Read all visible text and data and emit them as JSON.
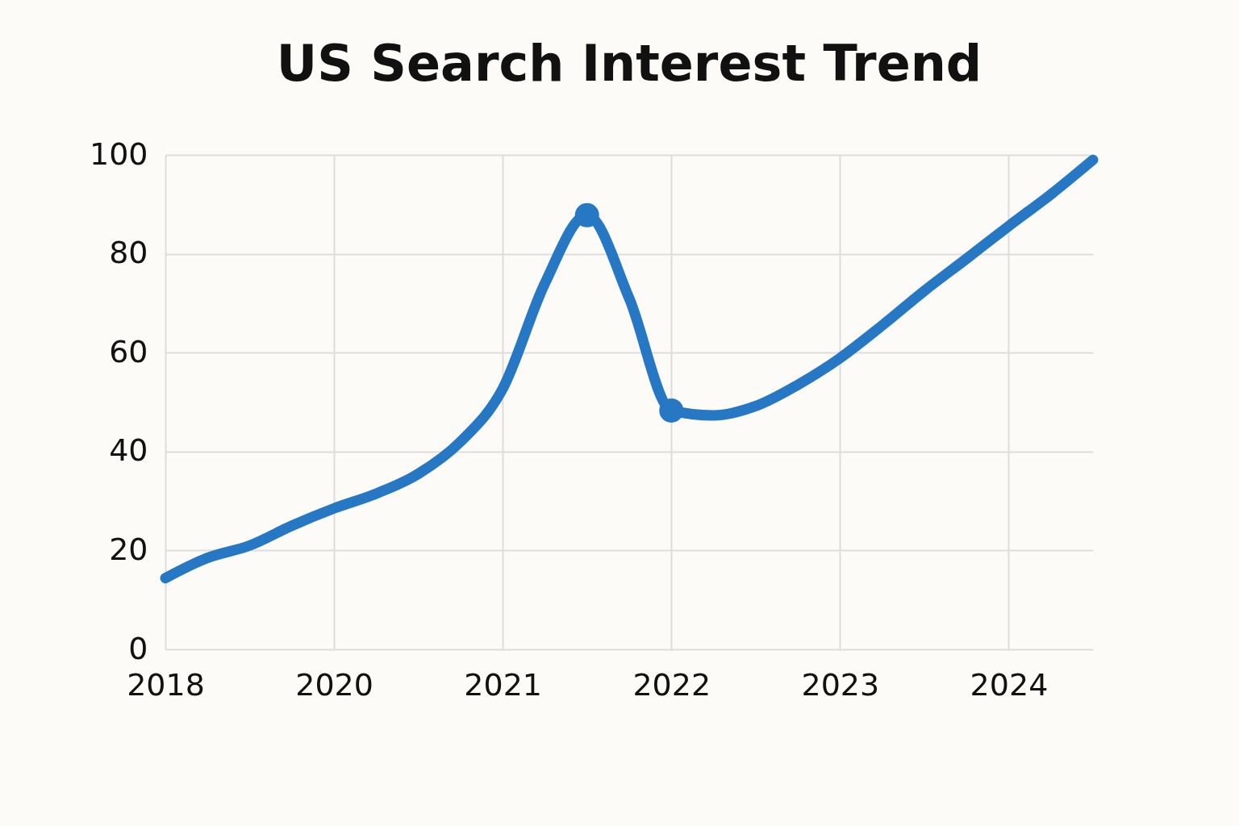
{
  "chart_data": {
    "type": "line",
    "title": "US Search Interest Trend",
    "categories": [
      "2018",
      null,
      null,
      null,
      "2020",
      null,
      null,
      null,
      "2021",
      null,
      null,
      null,
      "2022",
      null,
      null,
      null,
      "2023",
      null,
      null,
      null,
      "2024",
      null,
      null
    ],
    "ylim": [
      0,
      100
    ],
    "yticks": [
      0,
      20,
      40,
      60,
      80,
      100
    ],
    "grid": true,
    "series": [
      {
        "color": "#2677c4",
        "values": [
          14.4,
          18.5,
          21,
          25,
          28.5,
          31.5,
          35.5,
          42,
          52.7,
          74,
          87.8,
          71,
          48.3,
          47.3,
          49.2,
          53.5,
          58.9,
          65.5,
          72.5,
          79,
          85.6,
          92,
          99
        ]
      },
      {
        "type": "scatter",
        "marker": "circle",
        "color": "#2677c4",
        "values": [
          null,
          null,
          null,
          null,
          null,
          null,
          null,
          null,
          null,
          null,
          87.8,
          null,
          48.3,
          null,
          null,
          null,
          null,
          null,
          null,
          null,
          null,
          null,
          null
        ]
      }
    ]
  }
}
